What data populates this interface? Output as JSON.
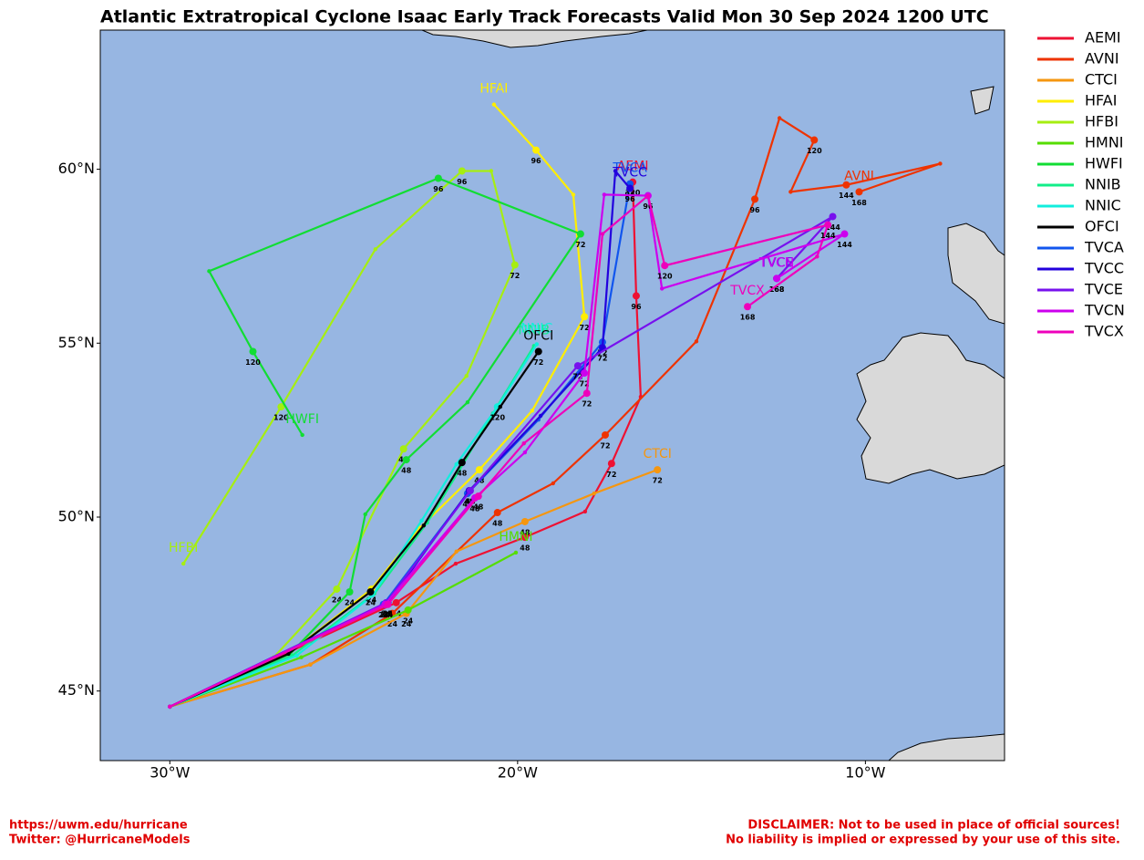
{
  "chart_data": {
    "type": "map",
    "title": "Atlantic Extratropical Cyclone Isaac Early Track Forecasts Valid Mon 30 Sep 2024 1200 UTC",
    "xlim": [
      -32,
      -6
    ],
    "ylim": [
      43,
      64
    ],
    "xticks": [
      {
        "value": -30,
        "label": "30°W"
      },
      {
        "value": -20,
        "label": "20°W"
      },
      {
        "value": -10,
        "label": "10°W"
      }
    ],
    "yticks": [
      {
        "value": 45,
        "label": "45°N"
      },
      {
        "value": 50,
        "label": "50°N"
      },
      {
        "value": 55,
        "label": "55°N"
      },
      {
        "value": 60,
        "label": "60°N"
      }
    ],
    "series": [
      {
        "name": "AEMI",
        "color": "#ee1133",
        "x": [
          -30,
          -23.49,
          -21.78,
          -19.79,
          -18.06,
          -17.3,
          -16.46,
          -16.59,
          -16.69
        ],
        "y": [
          44.55,
          47.54,
          48.66,
          49.42,
          50.16,
          51.54,
          53.46,
          56.36,
          59.63
        ],
        "labels": [
          null,
          "24",
          null,
          "48",
          null,
          "72",
          null,
          "96",
          "120"
        ]
      },
      {
        "name": "AVNI",
        "color": "#ee3300",
        "x": [
          -30,
          -25.96,
          -23.6,
          -20.58,
          -18.98,
          -17.48,
          -14.86,
          -13.18,
          -12.47,
          -11.47,
          -12.15,
          -10.55,
          -7.85,
          -10.18
        ],
        "y": [
          44.55,
          45.76,
          47.23,
          50.13,
          50.97,
          52.36,
          55.05,
          59.14,
          61.47,
          60.84,
          59.35,
          59.55,
          60.16,
          59.35
        ],
        "labels": [
          null,
          null,
          "24",
          "48",
          null,
          "72",
          null,
          "96",
          null,
          "120",
          null,
          "144",
          null,
          "168"
        ]
      },
      {
        "name": "CTCI",
        "color": "#f5960f",
        "x": [
          -30,
          -25.96,
          -23.2,
          -21.76,
          -19.79,
          -17.8,
          -15.98
        ],
        "y": [
          44.55,
          45.76,
          47.23,
          49.01,
          49.87,
          50.68,
          51.36
        ],
        "labels": [
          null,
          null,
          "24",
          null,
          "48",
          null,
          "72"
        ]
      },
      {
        "name": "HFAI",
        "color": "#ffee00",
        "x": [
          -30,
          -26.59,
          -24.2,
          -22.81,
          -21.1,
          -19.58,
          -18.08,
          -18.4,
          -19.47,
          -20.68
        ],
        "y": [
          44.55,
          46.07,
          47.93,
          49.69,
          51.36,
          53.06,
          55.76,
          59.27,
          60.55,
          61.86
        ],
        "labels": [
          null,
          null,
          "24",
          null,
          "48",
          null,
          "72",
          null,
          "96",
          null
        ]
      },
      {
        "name": "HFBI",
        "color": "#a6ee11",
        "x": [
          -30,
          -27.01,
          -25.2,
          -23.28,
          -21.47,
          -20.08,
          -20.76,
          -21.6,
          -24.09,
          -26.8,
          -29.61
        ],
        "y": [
          44.55,
          45.97,
          47.93,
          51.96,
          54.06,
          57.25,
          59.95,
          59.95,
          57.7,
          53.17,
          48.66
        ],
        "labels": [
          null,
          null,
          "24",
          "48",
          null,
          "72",
          null,
          "96",
          null,
          "120",
          null
        ]
      },
      {
        "name": "HMNI",
        "color": "#55dd00",
        "x": [
          -30,
          -26.22,
          -23.15,
          -20.05
        ],
        "y": [
          44.55,
          45.97,
          47.33,
          48.98
        ],
        "labels": [
          null,
          null,
          "24",
          null
        ]
      },
      {
        "name": "HWFI",
        "color": "#11dd33",
        "x": [
          -30,
          -26.54,
          -24.83,
          -24.38,
          -23.2,
          -21.44,
          -18.19,
          -22.28,
          -28.87,
          -27.61,
          -26.19
        ],
        "y": [
          44.55,
          46.07,
          47.85,
          50.08,
          51.65,
          53.3,
          58.14,
          59.74,
          57.07,
          54.76,
          52.36
        ],
        "labels": [
          null,
          null,
          "24",
          null,
          "48",
          null,
          "72",
          "96",
          null,
          "120",
          null
        ]
      },
      {
        "name": "NNIB",
        "color": "#11ee88",
        "x": [
          -30,
          -26.48,
          -24.12,
          -22.6,
          -21.68,
          -20.71,
          -19.53
        ],
        "y": [
          44.55,
          46.02,
          47.8,
          49.84,
          51.34,
          52.98,
          54.92
        ],
        "labels": [
          null,
          null,
          null,
          null,
          null,
          null,
          null
        ]
      },
      {
        "name": "NNIC",
        "color": "#11eedd",
        "x": [
          -30,
          -26.35,
          -24.17,
          -22.76,
          -21.76,
          -20.58,
          -19.45
        ],
        "y": [
          44.55,
          46.02,
          47.75,
          49.9,
          51.52,
          53.17,
          54.97
        ],
        "labels": [
          null,
          null,
          null,
          null,
          null,
          "120",
          null
        ]
      },
      {
        "name": "OFCI",
        "color": "#000000",
        "x": [
          -30,
          -26.59,
          -24.23,
          -22.7,
          -21.6,
          -20.5,
          -19.4
        ],
        "y": [
          44.55,
          46.07,
          47.85,
          49.76,
          51.57,
          53.17,
          54.76
        ],
        "labels": [
          null,
          null,
          "24",
          null,
          "48",
          null,
          "72"
        ]
      },
      {
        "name": "TVCA",
        "color": "#1155ee",
        "x": [
          -30,
          -23.86,
          -21.44,
          -19.4,
          -17.56,
          -16.77
        ],
        "y": [
          44.55,
          47.49,
          50.68,
          52.8,
          55.03,
          59.58
        ],
        "labels": [
          null,
          "24",
          "48",
          null,
          "72",
          "96"
        ]
      },
      {
        "name": "TVCC",
        "color": "#2200dd",
        "x": [
          -30,
          -23.73,
          -21.39,
          -19.34,
          -17.56,
          -17.19,
          -16.77
        ],
        "y": [
          44.55,
          47.54,
          50.76,
          52.91,
          54.87,
          59.95,
          59.45
        ],
        "labels": [
          null,
          "24",
          "48",
          null,
          "72",
          null,
          "96"
        ]
      },
      {
        "name": "TVCE",
        "color": "#7711ee",
        "x": [
          -30,
          -23.78,
          -21.36,
          -18.27,
          -10.94,
          -12.55
        ],
        "y": [
          44.55,
          47.54,
          50.76,
          54.35,
          58.64,
          56.86
        ],
        "labels": [
          null,
          "24",
          "48",
          "72",
          "144",
          "168"
        ]
      },
      {
        "name": "TVCN",
        "color": "#cc00ee",
        "x": [
          -30,
          -23.81,
          -21.23,
          -19.79,
          -18.08,
          -17.51,
          -16.25,
          -15.85,
          -10.6,
          -12.55
        ],
        "y": [
          44.55,
          47.49,
          50.55,
          51.86,
          54.14,
          59.27,
          59.24,
          56.57,
          58.14,
          56.86
        ],
        "labels": [
          null,
          "24",
          "48",
          null,
          "72",
          null,
          "96",
          null,
          "144",
          "168"
        ]
      },
      {
        "name": "TVCX",
        "color": "#ee00bb",
        "x": [
          -30,
          -23.73,
          -21.13,
          -19.82,
          -18.01,
          -17.56,
          -16.25,
          -15.77,
          -11.08,
          -11.39,
          -13.39
        ],
        "y": [
          44.55,
          47.49,
          50.6,
          52.12,
          53.56,
          58.14,
          59.24,
          57.23,
          58.4,
          57.49,
          56.05
        ],
        "labels": [
          null,
          "24",
          "48",
          null,
          "72",
          null,
          null,
          "120",
          "144",
          null,
          "168"
        ]
      }
    ]
  },
  "footer": {
    "left": [
      "https://uwm.edu/hurricane",
      "Twitter: @HurricaneModels"
    ],
    "right": [
      "DISCLAIMER: Not to be used in place of official sources!",
      "No liability is implied or expressed by your use of this site."
    ]
  }
}
